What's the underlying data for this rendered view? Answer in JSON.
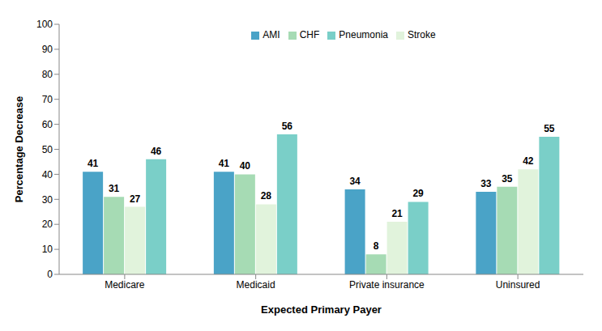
{
  "chart_data": {
    "type": "bar",
    "x_label": "Expected Primary Payer",
    "y_label": "Percentage Decrease",
    "categories": [
      "Medicare",
      "Medicaid",
      "Private insurance",
      "Uninsured"
    ],
    "series": [
      {
        "name": "AMI",
        "color": "#4aa3c7",
        "values": [
          41,
          41,
          34,
          33
        ]
      },
      {
        "name": "CHF",
        "color": "#a6dbb4",
        "values": [
          31,
          40,
          8,
          35
        ]
      },
      {
        "name": "Stroke",
        "color": "#e1f3dc",
        "values": [
          27,
          28,
          21,
          42
        ]
      },
      {
        "name": "Pneumonia",
        "color": "#7acfc8",
        "values": [
          46,
          56,
          29,
          55
        ]
      }
    ],
    "ylim": [
      0,
      100
    ],
    "yticks": [
      0,
      10,
      20,
      30,
      40,
      50,
      60,
      70,
      80,
      90,
      100
    ],
    "grid": false,
    "legend": "top",
    "data_labels": true
  }
}
